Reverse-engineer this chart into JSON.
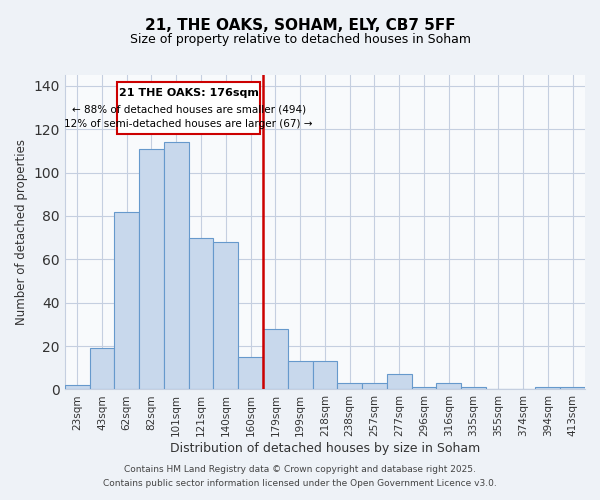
{
  "title_line1": "21, THE OAKS, SOHAM, ELY, CB7 5FF",
  "title_line2": "Size of property relative to detached houses in Soham",
  "xlabel": "Distribution of detached houses by size in Soham",
  "ylabel": "Number of detached properties",
  "categories": [
    "23sqm",
    "43sqm",
    "62sqm",
    "82sqm",
    "101sqm",
    "121sqm",
    "140sqm",
    "160sqm",
    "179sqm",
    "199sqm",
    "218sqm",
    "238sqm",
    "257sqm",
    "277sqm",
    "296sqm",
    "316sqm",
    "335sqm",
    "355sqm",
    "374sqm",
    "394sqm",
    "413sqm"
  ],
  "bar_heights": [
    2,
    19,
    82,
    111,
    114,
    70,
    68,
    15,
    28,
    13,
    13,
    3,
    3,
    7,
    1,
    3,
    1,
    0,
    0,
    1,
    1
  ],
  "bar_color": "#c8d8ec",
  "bar_edge_color": "#6699cc",
  "vline_x": 7.5,
  "vline_color": "#cc0000",
  "ylim": [
    0,
    145
  ],
  "yticks": [
    0,
    20,
    40,
    60,
    80,
    100,
    120,
    140
  ],
  "annotation_title": "21 THE OAKS: 176sqm",
  "annotation_line1": "← 88% of detached houses are smaller (494)",
  "annotation_line2": "12% of semi-detached houses are larger (67) →",
  "annotation_box_color": "#cc0000",
  "footer_line1": "Contains HM Land Registry data © Crown copyright and database right 2025.",
  "footer_line2": "Contains public sector information licensed under the Open Government Licence v3.0.",
  "background_color": "#eef2f7",
  "plot_bg_color": "#f8fafc",
  "grid_color": "#c5cfe0"
}
